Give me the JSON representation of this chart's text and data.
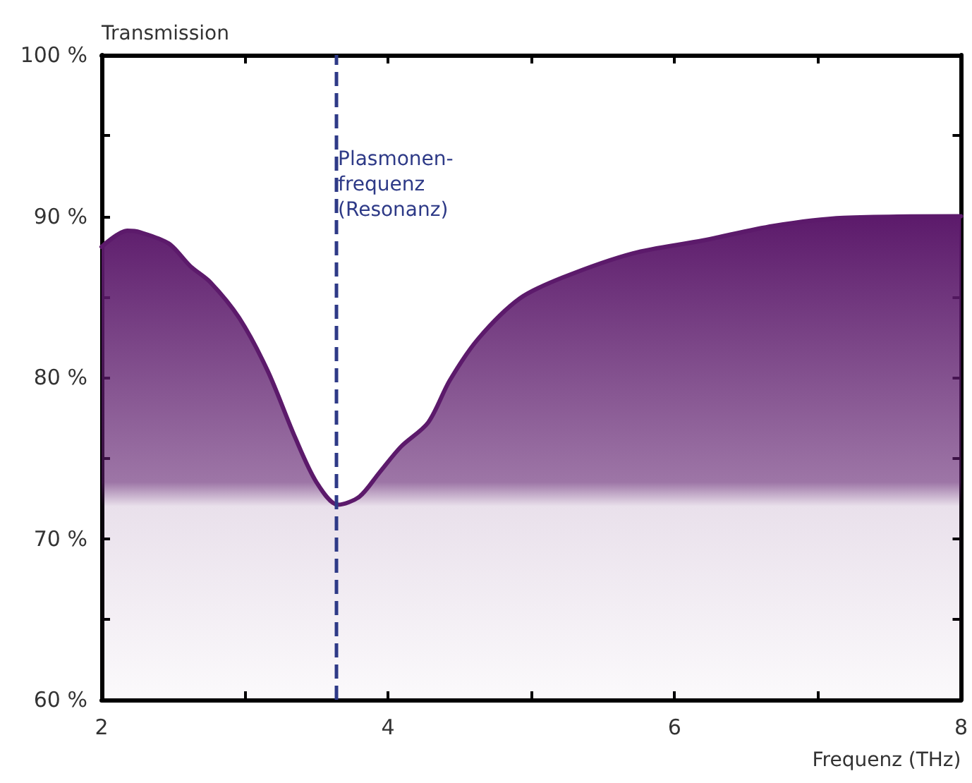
{
  "chart_data": {
    "type": "area",
    "ylabel": "Transmission",
    "xlabel": "Frequenz (THz)",
    "x": [
      2,
      2.18,
      2.27,
      2.47,
      2.62,
      2.76,
      2.96,
      3.16,
      3.35,
      3.5,
      3.65,
      3.8,
      3.94,
      4.09,
      4.28,
      4.43,
      4.63,
      4.92,
      5.22,
      5.71,
      6.2,
      6.69,
      7.18,
      8
    ],
    "series": [
      {
        "color": "#5c1a6b",
        "values": [
          88.1,
          89.1,
          89.0,
          88.3,
          86.9,
          85.9,
          83.7,
          80.4,
          76.3,
          73.5,
          72.1,
          72.6,
          74.1,
          75.7,
          77.2,
          79.8,
          82.4,
          84.9,
          86.2,
          87.7,
          88.5,
          89.4,
          89.9,
          90.0
        ]
      }
    ],
    "xlim": [
      2,
      8
    ],
    "xticks": [
      2,
      {
        "value": 3,
        "label": null
      },
      4,
      {
        "value": 5,
        "label": null
      },
      6,
      {
        "value": 7,
        "label": null
      },
      8
    ],
    "ylim": [
      60,
      100
    ],
    "yticks": [
      {
        "value": 60,
        "label": "60 %"
      },
      {
        "value": 65,
        "label": null
      },
      {
        "value": 70,
        "label": "70 %"
      },
      {
        "value": 75,
        "label": null
      },
      {
        "value": 80,
        "label": "80 %"
      },
      {
        "value": 85,
        "label": null
      },
      {
        "value": 90,
        "label": "90 %"
      },
      {
        "value": 95,
        "label": null
      },
      {
        "value": 100,
        "label": "100 %"
      }
    ],
    "ref_lines": [
      {
        "axis": "x",
        "value": 3.64,
        "label": "Plasmonen-\nfrequenz\n(Resonanz)",
        "color": "#2e3a87",
        "line_style": "dashed"
      }
    ],
    "grid": false,
    "marker": "none",
    "line_style": "solid"
  }
}
